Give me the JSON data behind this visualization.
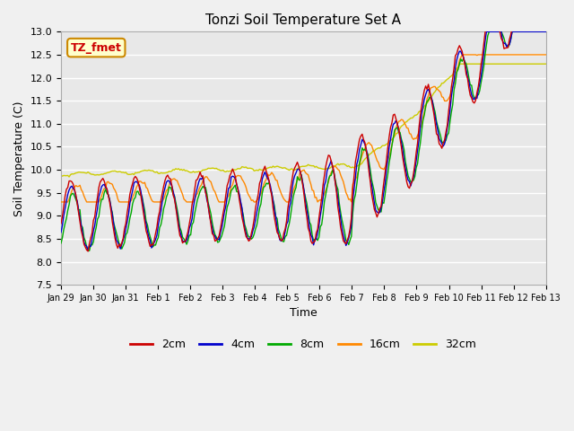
{
  "title": "Tonzi Soil Temperature Set A",
  "xlabel": "Time",
  "ylabel": "Soil Temperature (C)",
  "ylim": [
    7.5,
    13.0
  ],
  "yticks": [
    7.5,
    8.0,
    8.5,
    9.0,
    9.5,
    10.0,
    10.5,
    11.0,
    11.5,
    12.0,
    12.5,
    13.0
  ],
  "xtick_labels": [
    "Jan 29",
    "Jan 30",
    "Jan 31",
    "Feb 1",
    "Feb 2",
    "Feb 3",
    "Feb 4",
    "Feb 5",
    "Feb 6",
    "Feb 7",
    "Feb 8",
    "Feb 9",
    "Feb 10",
    "Feb 11",
    "Feb 12",
    "Feb 13"
  ],
  "colors": {
    "2cm": "#cc0000",
    "4cm": "#0000cc",
    "8cm": "#00aa00",
    "16cm": "#ff8800",
    "32cm": "#cccc00"
  },
  "legend_label": "TZ_fmet",
  "legend_bg": "#ffffcc",
  "legend_border": "#cc8800"
}
